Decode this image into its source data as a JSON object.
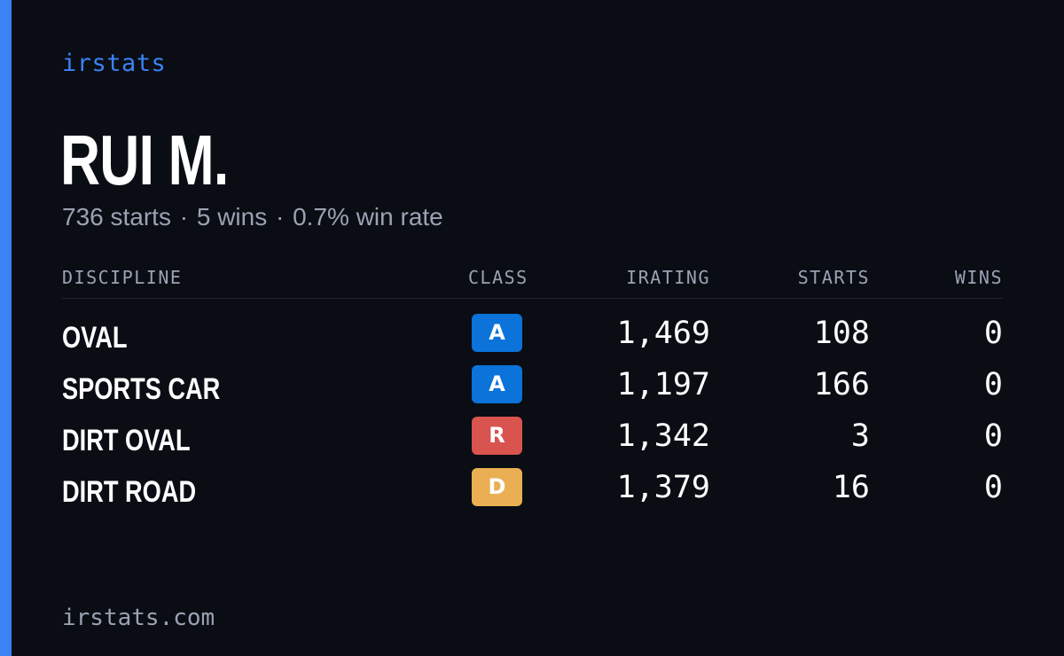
{
  "brand": "irstats",
  "driver": {
    "name": "RUI M.",
    "starts_text": "736 starts",
    "wins_text": "5 wins",
    "win_rate_text": "0.7% win rate",
    "separator": "·"
  },
  "table": {
    "headers": {
      "discipline": "DISCIPLINE",
      "class": "CLASS",
      "irating": "IRATING",
      "starts": "STARTS",
      "wins": "WINS"
    },
    "rows": [
      {
        "discipline": "OVAL",
        "class": "A",
        "class_color": "#0b73d9",
        "irating": "1,469",
        "starts": "108",
        "wins": "0"
      },
      {
        "discipline": "SPORTS CAR",
        "class": "A",
        "class_color": "#0b73d9",
        "irating": "1,197",
        "starts": "166",
        "wins": "0"
      },
      {
        "discipline": "DIRT OVAL",
        "class": "R",
        "class_color": "#d9534f",
        "irating": "1,342",
        "starts": "3",
        "wins": "0"
      },
      {
        "discipline": "DIRT ROAD",
        "class": "D",
        "class_color": "#eaae53",
        "irating": "1,379",
        "starts": "16",
        "wins": "0"
      }
    ]
  },
  "footer": "irstats.com",
  "colors": {
    "accent": "#3b82f6",
    "background": "#0a0d14",
    "muted_text": "#9aa3b2"
  }
}
